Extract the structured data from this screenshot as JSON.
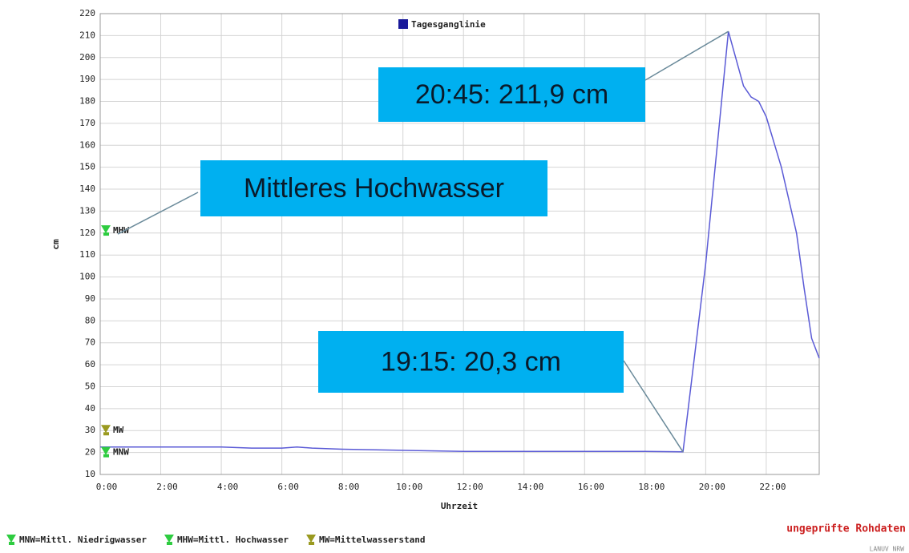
{
  "chart_data": {
    "type": "line",
    "xlabel": "Uhrzeit",
    "ylabel": "cm",
    "xlim": [
      0,
      23.75
    ],
    "ylim": [
      10,
      220
    ],
    "xticks": [
      {
        "value": 0,
        "label": "0:00"
      },
      {
        "value": 2,
        "label": "2:00"
      },
      {
        "value": 4,
        "label": "4:00"
      },
      {
        "value": 6,
        "label": "6:00"
      },
      {
        "value": 8,
        "label": "8:00"
      },
      {
        "value": 10,
        "label": "10:00"
      },
      {
        "value": 12,
        "label": "12:00"
      },
      {
        "value": 14,
        "label": "14:00"
      },
      {
        "value": 16,
        "label": "16:00"
      },
      {
        "value": 18,
        "label": "18:00"
      },
      {
        "value": 20,
        "label": "20:00"
      },
      {
        "value": 22,
        "label": "22:00"
      }
    ],
    "yticks": [
      10,
      20,
      30,
      40,
      50,
      60,
      70,
      80,
      90,
      100,
      110,
      120,
      130,
      140,
      150,
      160,
      170,
      180,
      190,
      200,
      210,
      220
    ],
    "grid": true,
    "series": [
      {
        "name": "Tagesganglinie",
        "color": "#5a5ad6",
        "x": [
          0,
          2,
          4,
          5,
          6,
          6.5,
          7,
          8,
          10,
          12,
          14,
          16,
          18,
          19.25,
          20,
          20.75,
          21.25,
          21.5,
          21.75,
          22,
          22.5,
          23,
          23.25,
          23.5,
          23.75
        ],
        "values": [
          22.5,
          22.5,
          22.5,
          22,
          22,
          22.5,
          22,
          21.5,
          21,
          20.5,
          20.5,
          20.5,
          20.5,
          20.3,
          106,
          211.9,
          187,
          182,
          180,
          173,
          150,
          120,
          95,
          72,
          63
        ]
      }
    ],
    "reference_lines": [
      {
        "label": "MHW",
        "value": 121,
        "color": "#2ecc40"
      },
      {
        "label": "MW",
        "value": 30,
        "color": "#9a9a20"
      },
      {
        "label": "MNW",
        "value": 20,
        "color": "#2ecc40"
      }
    ],
    "annotations": [
      {
        "text": "20:45: 211,9 cm",
        "x": 20.75,
        "y": 211.9
      },
      {
        "text": "Mittleres Hochwasser",
        "x": 0,
        "y": 121
      },
      {
        "text": "19:15: 20,3 cm",
        "x": 19.25,
        "y": 20.3
      }
    ],
    "footer_legend": [
      {
        "text": "MNW=Mittl. Niedrigwasser",
        "color": "#2ecc40"
      },
      {
        "text": "MHW=Mittl. Hochwasser",
        "color": "#2ecc40"
      },
      {
        "text": "MW=Mittelwasserstand",
        "color": "#9a9a20"
      }
    ],
    "status": "ungeprüfte Rohdaten",
    "source": "LANUV NRW"
  }
}
